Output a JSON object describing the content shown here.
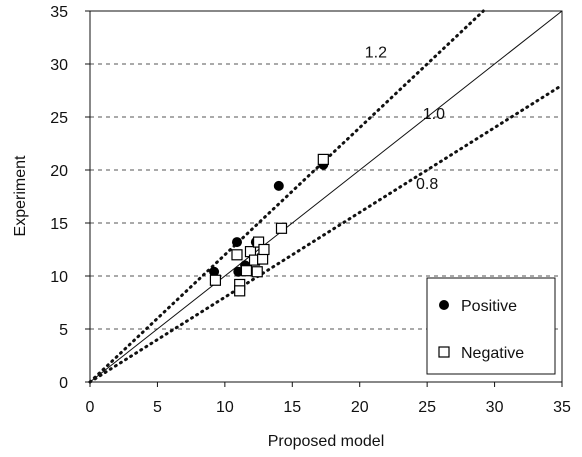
{
  "chart_data": {
    "type": "scatter",
    "xlabel": "Proposed model",
    "ylabel": "Experiment",
    "xlim": [
      0,
      35
    ],
    "ylim": [
      0,
      35
    ],
    "x_ticks": [
      "0",
      "5",
      "10",
      "15",
      "20",
      "25",
      "30",
      "35"
    ],
    "y_ticks": [
      "0",
      "5",
      "10",
      "15",
      "20",
      "25",
      "30",
      "35"
    ],
    "grid": "horizontal dashed",
    "legend_position": "bottom-right",
    "series": [
      {
        "name": "Positive",
        "marker": "filled-circle",
        "points": [
          [
            9.2,
            10.4
          ],
          [
            10.9,
            13.2
          ],
          [
            11.0,
            10.4
          ],
          [
            11.5,
            11.0
          ],
          [
            12.3,
            13.2
          ],
          [
            14.0,
            18.5
          ],
          [
            17.3,
            20.5
          ]
        ]
      },
      {
        "name": "Negative",
        "marker": "open-square",
        "points": [
          [
            9.3,
            9.6
          ],
          [
            10.9,
            12.0
          ],
          [
            11.1,
            9.2
          ],
          [
            11.1,
            8.6
          ],
          [
            11.6,
            10.5
          ],
          [
            11.9,
            12.3
          ],
          [
            12.2,
            11.5
          ],
          [
            12.4,
            10.4
          ],
          [
            12.5,
            13.2
          ],
          [
            12.8,
            11.6
          ],
          [
            12.9,
            12.5
          ],
          [
            14.2,
            14.5
          ],
          [
            17.3,
            21.0
          ]
        ]
      }
    ],
    "reference_lines": [
      {
        "slope": 1.2,
        "label": "1.2",
        "style": "dotted"
      },
      {
        "slope": 1.0,
        "label": "1.0",
        "style": "solid"
      },
      {
        "slope": 0.8,
        "label": "0.8",
        "style": "dotted"
      }
    ],
    "colors": {
      "axis": "#111111",
      "grid": "#555555",
      "marker": "#000000"
    }
  }
}
